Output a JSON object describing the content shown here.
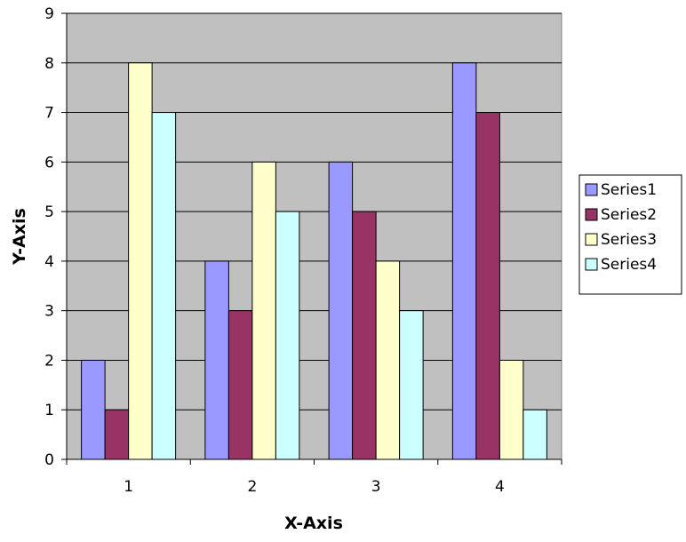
{
  "chart_data": {
    "type": "bar",
    "title": "",
    "xlabel": "X-Axis",
    "ylabel": "Y-Axis",
    "categories": [
      "1",
      "2",
      "3",
      "4"
    ],
    "series": [
      {
        "name": "Series1",
        "color": "#9999ff",
        "values": [
          2,
          4,
          6,
          8
        ]
      },
      {
        "name": "Series2",
        "color": "#993366",
        "values": [
          1,
          3,
          5,
          7
        ]
      },
      {
        "name": "Series3",
        "color": "#ffffcc",
        "values": [
          8,
          6,
          4,
          2
        ]
      },
      {
        "name": "Series4",
        "color": "#ccffff",
        "values": [
          7,
          5,
          3,
          1
        ]
      }
    ],
    "ylim": [
      0,
      9
    ],
    "yticks": [
      0,
      1,
      2,
      3,
      4,
      5,
      6,
      7,
      8,
      9
    ],
    "grid": true,
    "legend_position": "right",
    "plot_background": "#c0c0c0"
  }
}
